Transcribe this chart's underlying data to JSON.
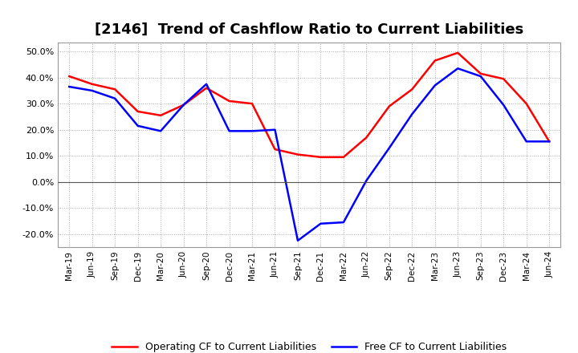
{
  "title": "[2146]  Trend of Cashflow Ratio to Current Liabilities",
  "x_labels": [
    "Mar-19",
    "Jun-19",
    "Sep-19",
    "Dec-19",
    "Mar-20",
    "Jun-20",
    "Sep-20",
    "Dec-20",
    "Mar-21",
    "Jun-21",
    "Sep-21",
    "Dec-21",
    "Mar-22",
    "Jun-22",
    "Sep-22",
    "Dec-22",
    "Mar-23",
    "Jun-23",
    "Sep-23",
    "Dec-23",
    "Mar-24",
    "Jun-24"
  ],
  "operating_cf": [
    0.405,
    0.375,
    0.355,
    0.27,
    0.255,
    0.295,
    0.36,
    0.31,
    0.3,
    0.125,
    0.105,
    0.095,
    0.095,
    0.17,
    0.29,
    0.355,
    0.465,
    0.495,
    0.415,
    0.395,
    0.3,
    0.155
  ],
  "free_cf": [
    0.365,
    0.35,
    0.32,
    0.215,
    0.195,
    0.295,
    0.375,
    0.195,
    0.195,
    0.2,
    -0.225,
    -0.16,
    -0.155,
    0.005,
    0.13,
    0.26,
    0.37,
    0.435,
    0.405,
    0.295,
    0.155,
    0.155
  ],
  "operating_color": "#ff0000",
  "free_color": "#0000ff",
  "ylim": [
    -0.25,
    0.535
  ],
  "yticks": [
    -0.2,
    -0.1,
    0.0,
    0.1,
    0.2,
    0.3,
    0.4,
    0.5
  ],
  "background_color": "#ffffff",
  "grid_color": "#aaaaaa",
  "title_fontsize": 13,
  "legend_labels": [
    "Operating CF to Current Liabilities",
    "Free CF to Current Liabilities"
  ]
}
